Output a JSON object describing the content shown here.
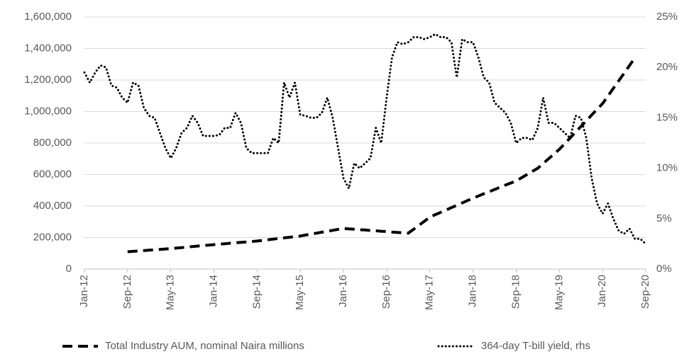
{
  "chart_data": {
    "type": "line",
    "categories": [
      "Jan-12",
      null,
      null,
      null,
      null,
      null,
      null,
      null,
      "Sep-12",
      null,
      null,
      null,
      null,
      null,
      null,
      null,
      "May-13",
      null,
      null,
      null,
      null,
      null,
      null,
      null,
      "Jan-14",
      null,
      null,
      null,
      null,
      null,
      null,
      null,
      "Sep-14",
      null,
      null,
      null,
      null,
      null,
      null,
      null,
      "May-15",
      null,
      null,
      null,
      null,
      null,
      null,
      null,
      "Jan-16",
      null,
      null,
      null,
      null,
      null,
      null,
      null,
      "Sep-16",
      null,
      null,
      null,
      null,
      null,
      null,
      null,
      "May-17",
      null,
      null,
      null,
      null,
      null,
      null,
      null,
      "Jan-18",
      null,
      null,
      null,
      null,
      null,
      null,
      null,
      "Sep-18",
      null,
      null,
      null,
      null,
      null,
      null,
      null,
      "May-19",
      null,
      null,
      null,
      null,
      null,
      null,
      null,
      "Jan-20",
      null,
      null,
      null,
      null,
      null,
      null,
      null,
      "Sep-20"
    ],
    "series": [
      {
        "name": "Total Industry AUM, nominal Naira millions",
        "color": "#000000",
        "style": "dashed",
        "values": [
          null,
          null,
          null,
          null,
          null,
          null,
          null,
          null,
          110000,
          112500,
          115000,
          117500,
          120000,
          122500,
          125000,
          127500,
          130000,
          133000,
          136000,
          140000,
          143000,
          146000,
          149000,
          152000,
          155000,
          158000,
          161000,
          164000,
          167000,
          170000,
          172000,
          175000,
          178000,
          182000,
          186000,
          190000,
          194000,
          198000,
          202000,
          206000,
          210000,
          216000,
          222000,
          228000,
          234000,
          240000,
          246000,
          252000,
          258000,
          255000,
          253000,
          250000,
          248000,
          245000,
          243000,
          240000,
          238000,
          235000,
          233000,
          230000,
          228000,
          253000,
          278000,
          304000,
          330000,
          345000,
          360000,
          375000,
          390000,
          405000,
          420000,
          435000,
          450000,
          464000,
          478000,
          491000,
          505000,
          519000,
          533000,
          546000,
          560000,
          580000,
          600000,
          620000,
          640000,
          670000,
          700000,
          730000,
          760000,
          796000,
          832000,
          869000,
          905000,
          941000,
          978000,
          1014000,
          1050000,
          1098000,
          1147000,
          1195000,
          1243000,
          1292000,
          1340000,
          null,
          null
        ]
      },
      {
        "name": "364-day T-bill yield, rhs",
        "color": "#000000",
        "style": "dotted",
        "axis": "y2",
        "values": [
          19.5,
          18.5,
          19.5,
          20.2,
          20,
          18.2,
          18,
          17,
          16.5,
          18.5,
          18.2,
          16,
          15.2,
          15,
          13.5,
          12,
          11,
          12,
          13.5,
          14,
          15.2,
          14.5,
          13.2,
          13.2,
          13.2,
          13.3,
          14,
          14,
          15.5,
          14.5,
          12,
          11.5,
          11.5,
          11.5,
          11.5,
          13,
          12.5,
          18.5,
          17,
          18.5,
          15.3,
          15.2,
          15,
          15,
          15.5,
          17,
          15,
          12,
          9,
          8,
          10.5,
          10,
          10.5,
          11,
          14,
          12.5,
          17,
          21,
          22.5,
          22.3,
          22.5,
          23,
          23,
          22.8,
          23,
          23.3,
          23,
          23,
          22.5,
          19,
          22.8,
          22.5,
          22.5,
          21,
          19,
          18.5,
          16.5,
          16,
          15.5,
          14.5,
          12.5,
          13,
          13,
          12.8,
          14,
          17,
          14.5,
          14.5,
          14,
          13.5,
          13,
          15.2,
          15,
          13,
          9,
          6.5,
          5.5,
          6.5,
          5,
          3.8,
          3.5,
          4,
          3,
          3,
          2.5
        ]
      }
    ],
    "ylim": [
      0,
      1600000
    ],
    "yticks": [
      0,
      {
        "value": 200000,
        "label": "200,000"
      },
      {
        "value": 400000,
        "label": "400,000"
      },
      {
        "value": 600000,
        "label": "600,000"
      },
      {
        "value": 800000,
        "label": "800,000"
      },
      {
        "value": 1000000,
        "label": "1,000,000"
      },
      {
        "value": 1200000,
        "label": "1,200,000"
      },
      {
        "value": 1400000,
        "label": "1,400,000"
      },
      {
        "value": 1600000,
        "label": "1,600,000"
      }
    ],
    "y2lim": [
      0,
      25
    ],
    "y2ticks": [
      {
        "value": 0,
        "label": "0%"
      },
      {
        "value": 5,
        "label": "5%"
      },
      {
        "value": 10,
        "label": "10%"
      },
      {
        "value": 15,
        "label": "15%"
      },
      {
        "value": 20,
        "label": "20%"
      },
      {
        "value": 25,
        "label": "25%"
      }
    ],
    "grid": true,
    "legend": "bottom"
  }
}
